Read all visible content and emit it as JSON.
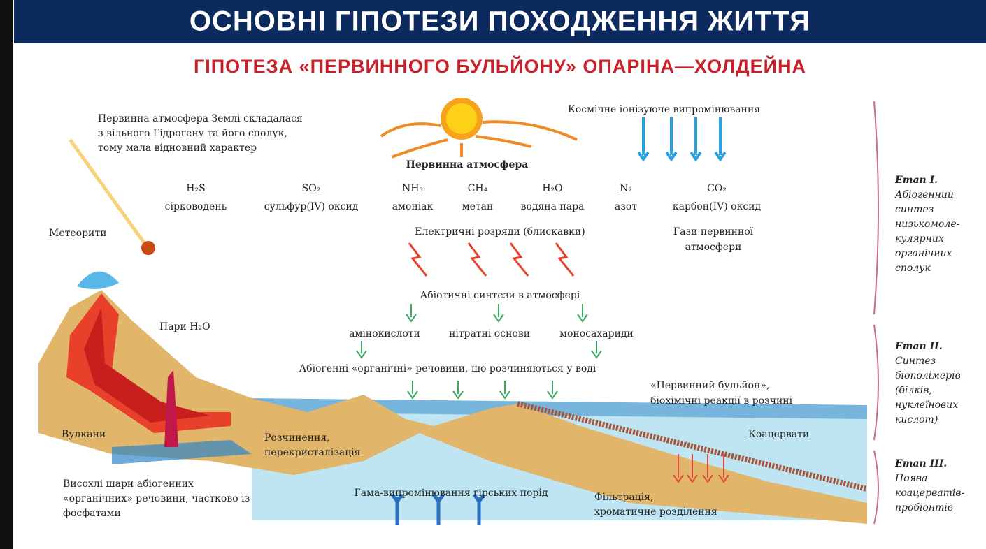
{
  "header": {
    "title": "ОСНОВНІ ГІПОТЕЗИ ПОХОДЖЕННЯ ЖИТТЯ",
    "subtitle": "ГІПОТЕЗА «ПЕРВИННОГО БУЛЬЙОНУ» ОПАРІНА—ХОЛДЕЙНА"
  },
  "labels": {
    "atmosphere_note": [
      "Первинна атмосфера Землі складалася",
      "з вільного Гідрогену та його сполук,",
      "тому мала відновний характер"
    ],
    "cosmic_radiation": "Космічне іонізуюче випромінювання",
    "primary_atmosphere": "Первинна атмосфера",
    "meteorites": "Метеорити",
    "electric_discharges": "Електричні розряди (блискавки)",
    "atmosphere_gases": [
      "Гази первинної",
      "атмосфери"
    ],
    "abiotic_synthesis": "Абіотичні синтези в атмосфері",
    "water_vapour": "Пари H₂O",
    "organic_matter": "Абіогенні «органічні» речовини, що розчиняються у воді",
    "primary_broth": [
      "«Первинний бульйон»,",
      "біохімічні реакції в розчині"
    ],
    "volcanoes": "Вулкани",
    "dissolution": [
      "Розчинення,",
      "перекристалізація"
    ],
    "coacervates": "Коацервати",
    "dried_layers": [
      "Висохлі шари абіогенних",
      "«органічних» речовини, частково із",
      "фосфатами"
    ],
    "gamma_radiation": "Гама-випромінювання гірських порід",
    "filtration": [
      "Фільтрація,",
      "хроматичне розділення"
    ]
  },
  "gases": [
    {
      "formula": "H₂S",
      "name": "сірководень"
    },
    {
      "formula": "SO₂",
      "name": "сульфур(IV) оксид"
    },
    {
      "formula": "NH₃",
      "name": "амоніак"
    },
    {
      "formula": "CH₄",
      "name": "метан"
    },
    {
      "formula": "H₂O",
      "name": "водяна пара"
    },
    {
      "formula": "N₂",
      "name": "азот"
    },
    {
      "formula": "CO₂",
      "name": "карбон(IV) оксид"
    }
  ],
  "monomers": [
    "амінокислоти",
    "нітратні основи",
    "моносахариди"
  ],
  "stages": [
    {
      "title": "Етап I.",
      "lines": [
        "Абіогенний",
        "синтез",
        "низькомоле-",
        "кулярних",
        "органічних",
        "сполук"
      ]
    },
    {
      "title": "Етап II.",
      "lines": [
        "Синтез",
        "біополімерів",
        "(білків,",
        "нуклеїнових",
        "кислот)"
      ]
    },
    {
      "title": "Етап III.",
      "lines": [
        "Поява",
        "коацерватів-",
        "пробіонтів"
      ]
    }
  ]
}
